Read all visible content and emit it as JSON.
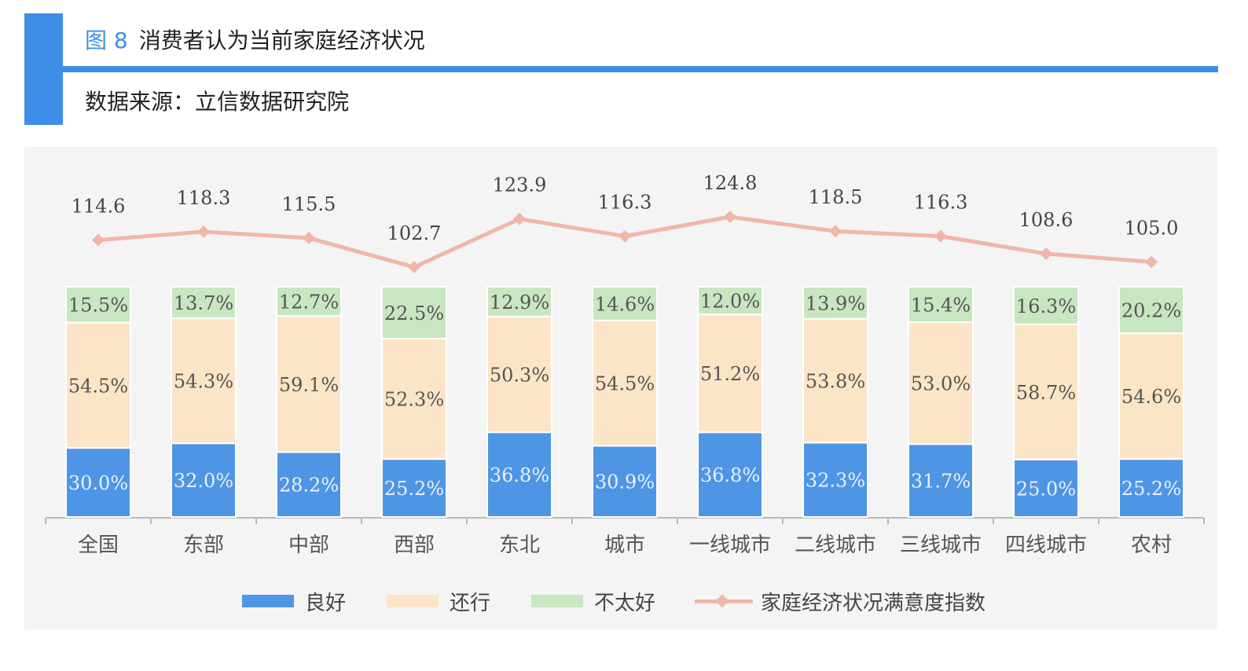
{
  "header": {
    "figure_number": "图 8",
    "title": "消费者认为当前家庭经济状况",
    "source": "数据来源：立信数据研究院"
  },
  "colors": {
    "accent": "#3d8ee8",
    "good": "#4f95e6",
    "ok": "#fbe5c6",
    "bad": "#c8e6c0",
    "index_line": "#f1b6a8",
    "panel": "#f4f4f4"
  },
  "legend": {
    "good": "良好",
    "ok": "还行",
    "bad": "不太好",
    "index": "家庭经济状况满意度指数"
  },
  "chart_data": {
    "type": "bar",
    "stacked": true,
    "categories": [
      "全国",
      "东部",
      "中部",
      "西部",
      "东北",
      "城市",
      "一线城市",
      "二线城市",
      "三线城市",
      "四线城市",
      "农村"
    ],
    "series": [
      {
        "name": "良好",
        "type": "bar",
        "values": [
          30.0,
          32.0,
          28.2,
          25.2,
          36.8,
          30.9,
          36.8,
          32.3,
          31.7,
          25.0,
          25.2
        ],
        "labels": [
          "30.0%",
          "32.0%",
          "28.2%",
          "25.2%",
          "36.8%",
          "30.9%",
          "36.8%",
          "32.3%",
          "31.7%",
          "25.0%",
          "25.2%"
        ]
      },
      {
        "name": "还行",
        "type": "bar",
        "values": [
          54.5,
          54.3,
          59.1,
          52.3,
          50.3,
          54.5,
          51.2,
          53.8,
          53.0,
          58.7,
          54.6
        ],
        "labels": [
          "54.5%",
          "54.3%",
          "59.1%",
          "52.3%",
          "50.3%",
          "54.5%",
          "51.2%",
          "53.8%",
          "53.0%",
          "58.7%",
          "54.6%"
        ]
      },
      {
        "name": "不太好",
        "type": "bar",
        "values": [
          15.5,
          13.7,
          12.7,
          22.5,
          12.9,
          14.6,
          12.0,
          13.9,
          15.4,
          16.3,
          20.2
        ],
        "labels": [
          "15.5%",
          "13.7%",
          "12.7%",
          "22.5%",
          "12.9%",
          "14.6%",
          "12.0%",
          "13.9%",
          "15.4%",
          "16.3%",
          "20.2%"
        ]
      },
      {
        "name": "家庭经济状况满意度指数",
        "type": "line",
        "values": [
          114.6,
          118.3,
          115.5,
          102.7,
          123.9,
          116.3,
          124.8,
          118.5,
          116.3,
          108.6,
          105.0
        ],
        "labels": [
          "114.6",
          "118.3",
          "115.5",
          "102.7",
          "123.9",
          "116.3",
          "124.8",
          "118.5",
          "116.3",
          "108.6",
          "105.0"
        ]
      }
    ],
    "ylim_bars": [
      0,
      100
    ],
    "unit": "%",
    "grid": false,
    "legend_position": "bottom"
  }
}
